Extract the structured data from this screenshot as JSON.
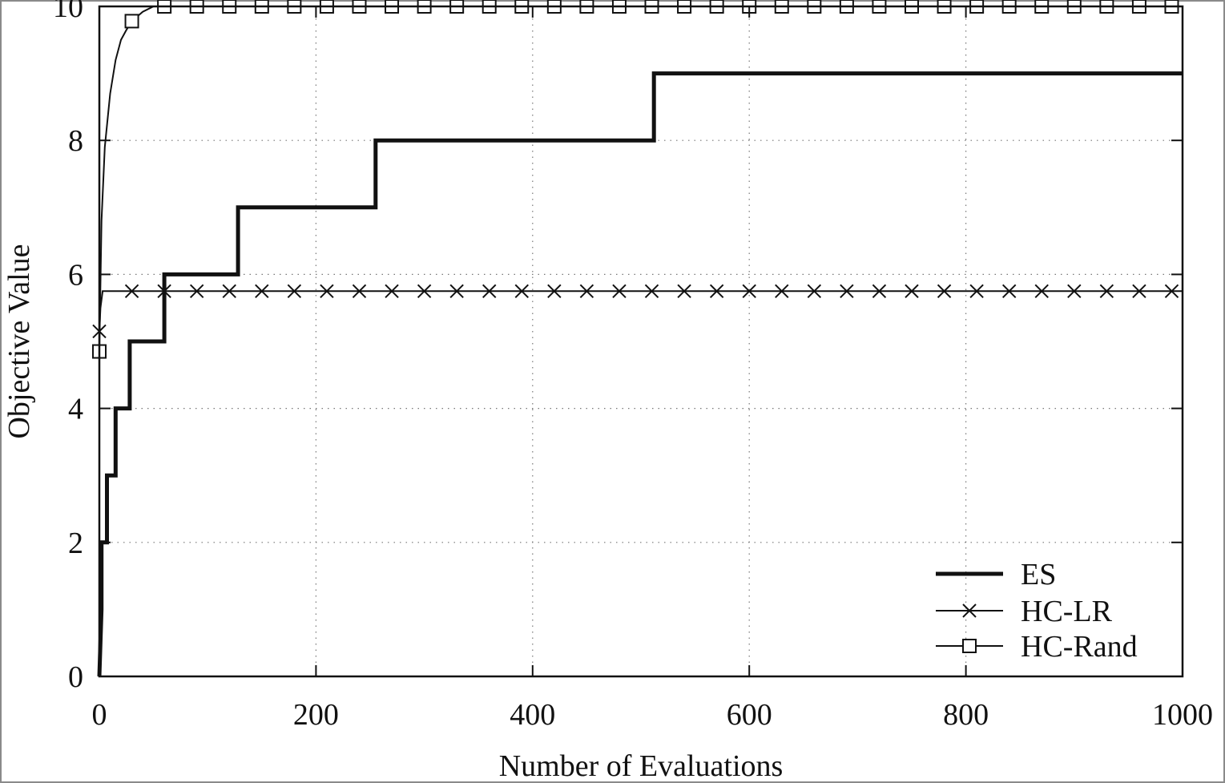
{
  "chart_data": {
    "type": "line",
    "title": "",
    "xlabel": "Number of Evaluations",
    "ylabel": "Objective Value",
    "xlim": [
      0,
      1000
    ],
    "ylim": [
      0,
      10
    ],
    "xticks": [
      "0",
      "200",
      "400",
      "600",
      "800",
      "1000"
    ],
    "yticks": [
      "0",
      "2",
      "4",
      "6",
      "8",
      "10"
    ],
    "grid": true,
    "legend_position": "bottom-right",
    "series": [
      {
        "name": "ES",
        "style": "thick-step",
        "x": [
          0,
          2,
          2,
          7,
          7,
          15,
          15,
          28,
          28,
          60,
          60,
          128,
          128,
          255,
          255,
          512,
          512,
          1000
        ],
        "y": [
          0,
          1,
          2,
          2,
          3,
          3,
          4,
          4,
          5,
          5,
          6,
          6,
          7,
          7,
          8,
          8,
          9,
          9
        ]
      },
      {
        "name": "HC-LR",
        "style": "thin-cross",
        "x": [
          0,
          1,
          3,
          1000
        ],
        "y": [
          5.15,
          5.5,
          5.75,
          5.75
        ],
        "marker_x": [
          0,
          30,
          60,
          90,
          120,
          150,
          180,
          210,
          240,
          270,
          300,
          330,
          360,
          390,
          420,
          450,
          480,
          510,
          540,
          570,
          600,
          630,
          660,
          690,
          720,
          750,
          780,
          810,
          840,
          870,
          900,
          930,
          960,
          990
        ],
        "marker_y": [
          5.15,
          5.75,
          5.75,
          5.75,
          5.75,
          5.75,
          5.75,
          5.75,
          5.75,
          5.75,
          5.75,
          5.75,
          5.75,
          5.75,
          5.75,
          5.75,
          5.75,
          5.75,
          5.75,
          5.75,
          5.75,
          5.75,
          5.75,
          5.75,
          5.75,
          5.75,
          5.75,
          5.75,
          5.75,
          5.75,
          5.75,
          5.75,
          5.75,
          5.75
        ]
      },
      {
        "name": "HC-Rand",
        "style": "thin-square",
        "x": [
          0,
          2,
          5,
          10,
          15,
          20,
          25,
          30,
          40,
          50,
          60,
          1000
        ],
        "y": [
          4.85,
          6.8,
          7.9,
          8.7,
          9.2,
          9.5,
          9.65,
          9.78,
          9.92,
          10,
          10,
          10
        ],
        "marker_x": [
          0,
          30,
          60,
          90,
          120,
          150,
          180,
          210,
          240,
          270,
          300,
          330,
          360,
          390,
          420,
          450,
          480,
          510,
          540,
          570,
          600,
          630,
          660,
          690,
          720,
          750,
          780,
          810,
          840,
          870,
          900,
          930,
          960,
          990
        ],
        "marker_y": [
          4.85,
          9.78,
          10,
          10,
          10,
          10,
          10,
          10,
          10,
          10,
          10,
          10,
          10,
          10,
          10,
          10,
          10,
          10,
          10,
          10,
          10,
          10,
          10,
          10,
          10,
          10,
          10,
          10,
          10,
          10,
          10,
          10,
          10,
          10
        ]
      }
    ]
  }
}
